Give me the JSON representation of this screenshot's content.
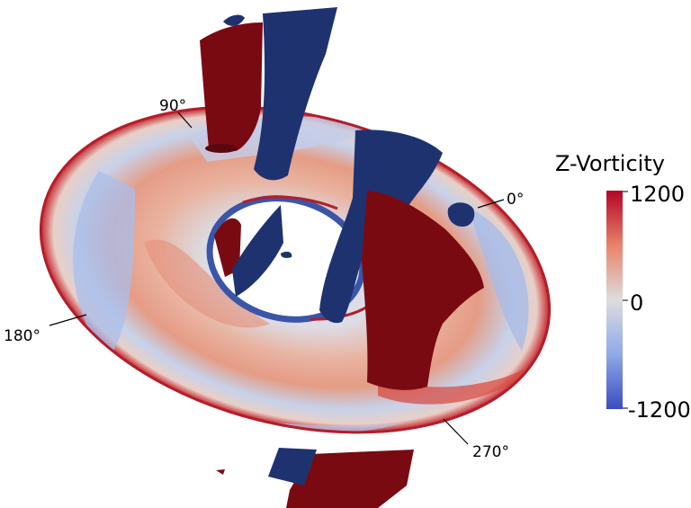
{
  "colorbar": {
    "title": "Z-Vorticity",
    "max_label": "1200",
    "mid_label": "0",
    "min_label": "-1200",
    "max": 1200,
    "min": -1200,
    "colors": {
      "high": "#b40426",
      "mid": "#dddddd",
      "low": "#3b4cc0"
    }
  },
  "angle_markers": [
    {
      "label": "0°",
      "degrees": 0
    },
    {
      "label": "90°",
      "degrees": 90
    },
    {
      "label": "180°",
      "degrees": 180
    },
    {
      "label": "270°",
      "degrees": 270
    }
  ],
  "colors": {
    "positive_vortex": "#7a0a12",
    "negative_vortex": "#1f3270",
    "disk_warm": "#e8a08a",
    "disk_cool": "#b9c8ea",
    "disk_neutral": "#e2d8d4",
    "inner_edge": "#3b55a8"
  }
}
